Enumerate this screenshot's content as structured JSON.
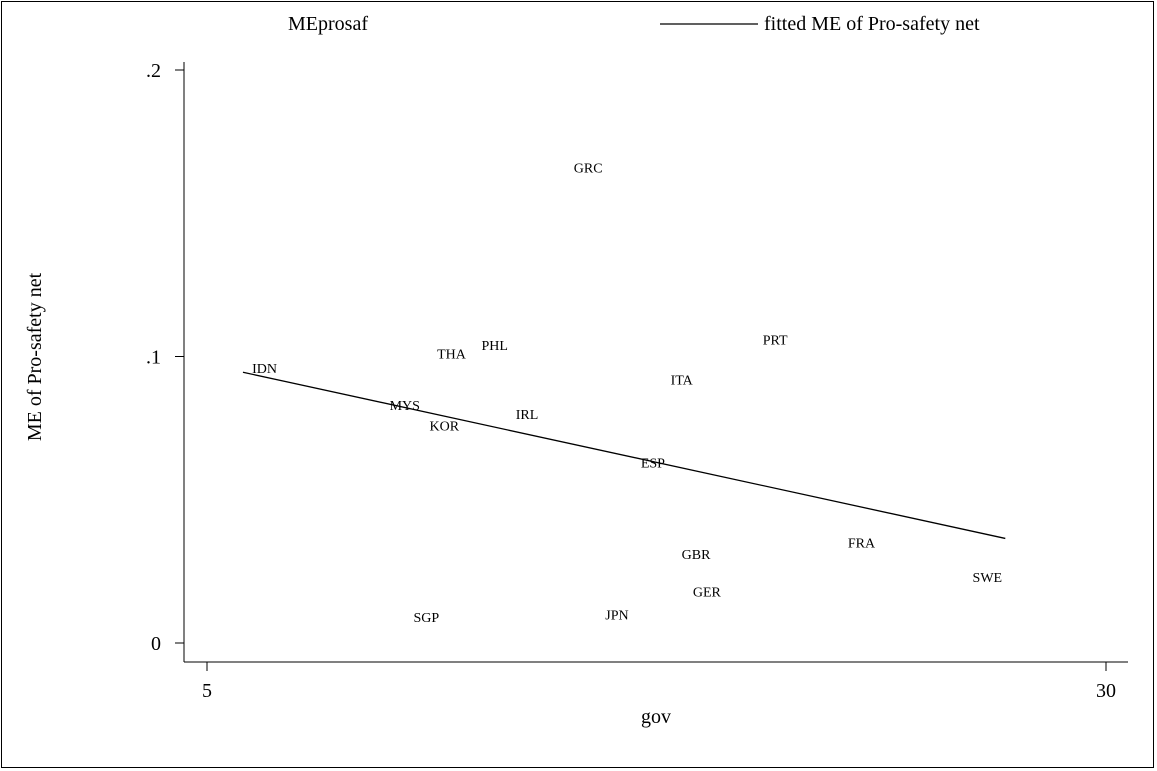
{
  "chart_data": {
    "type": "scatter",
    "legend": {
      "placement": "top",
      "entries": [
        {
          "label": "MEprosaf",
          "marker": "none"
        },
        {
          "label": "fitted ME of Pro-safety net",
          "marker": "line"
        }
      ]
    },
    "xlabel": "gov",
    "ylabel": "ME of Pro-safety net",
    "xlim": [
      5,
      30
    ],
    "ylim": [
      0,
      0.2
    ],
    "xticks": [
      {
        "value": 5,
        "label": "5"
      },
      {
        "value": 30,
        "label": "30"
      }
    ],
    "yticks": [
      {
        "value": 0,
        "label": "0"
      },
      {
        "value": 0.1,
        "label": ".1"
      },
      {
        "value": 0.2,
        "label": ".2"
      }
    ],
    "grid": false,
    "points": [
      {
        "label": "GRC",
        "x": 15.6,
        "y": 0.166
      },
      {
        "label": "PRT",
        "x": 20.8,
        "y": 0.106
      },
      {
        "label": "PHL",
        "x": 13.0,
        "y": 0.104
      },
      {
        "label": "THA",
        "x": 11.8,
        "y": 0.101
      },
      {
        "label": "IDN",
        "x": 6.6,
        "y": 0.096
      },
      {
        "label": "ITA",
        "x": 18.2,
        "y": 0.092
      },
      {
        "label": "MYS",
        "x": 10.5,
        "y": 0.083
      },
      {
        "label": "IRL",
        "x": 13.9,
        "y": 0.08
      },
      {
        "label": "KOR",
        "x": 11.6,
        "y": 0.076
      },
      {
        "label": "ESP",
        "x": 17.4,
        "y": 0.063
      },
      {
        "label": "FRA",
        "x": 23.2,
        "y": 0.035
      },
      {
        "label": "GBR",
        "x": 18.6,
        "y": 0.031
      },
      {
        "label": "SWE",
        "x": 26.7,
        "y": 0.023
      },
      {
        "label": "GER",
        "x": 18.9,
        "y": 0.018
      },
      {
        "label": "JPN",
        "x": 16.4,
        "y": 0.01
      },
      {
        "label": "SGP",
        "x": 11.1,
        "y": 0.009
      }
    ],
    "fitted_line": {
      "name": "fitted ME of Pro-safety net",
      "x": [
        6.0,
        27.2
      ],
      "y": [
        0.0945,
        0.0365
      ]
    }
  }
}
